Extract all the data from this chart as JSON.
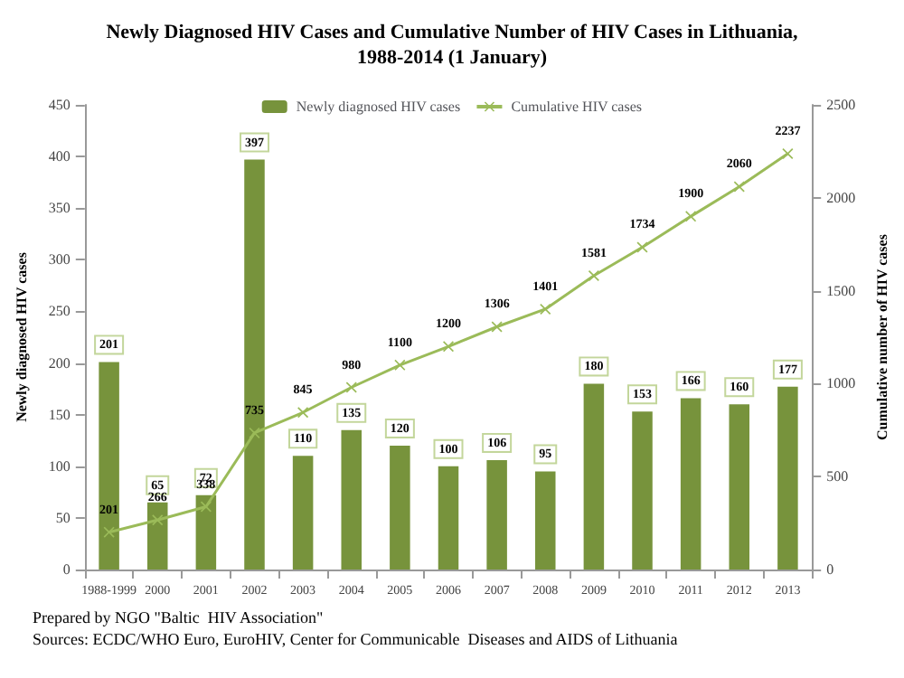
{
  "chart_data": {
    "type": "bar",
    "title": "Newly Diagnosed HIV Cases and Cumulative Number of HIV Cases in Lithuania,\n1988-2014 (1 January)",
    "ylabel": "Newly diagnosed HIV cases",
    "y2label": "Cumulative number of HIV cases",
    "categories": [
      "1988-1999",
      "2000",
      "2001",
      "2002",
      "2003",
      "2004",
      "2005",
      "2006",
      "2007",
      "2008",
      "2009",
      "2010",
      "2011",
      "2012",
      "2013"
    ],
    "series": [
      {
        "name": "Newly diagnosed HIV cases",
        "color": "#77933c",
        "values": [
          201,
          65,
          72,
          397,
          110,
          135,
          120,
          100,
          106,
          95,
          180,
          153,
          166,
          160,
          177
        ]
      },
      {
        "name": "Cumulative HIV cases",
        "type": "line",
        "axis": "y2",
        "color": "#9bbb59",
        "marker": "cross",
        "values": [
          201,
          266,
          338,
          735,
          845,
          980,
          1100,
          1200,
          1306,
          1401,
          1581,
          1734,
          1900,
          2060,
          2237
        ]
      }
    ],
    "ylim": [
      0,
      450
    ],
    "yticks": [
      0,
      50,
      100,
      150,
      200,
      250,
      300,
      350,
      400,
      450
    ],
    "y2lim": [
      0,
      2500
    ],
    "y2ticks": [
      0,
      500,
      1000,
      1500,
      2000,
      2500
    ],
    "data_labels": true,
    "grid": false,
    "legend": "top",
    "annotations": [
      "Prepared by NGO \"Baltic  HIV Association\"",
      "Sources: ECDC/WHO Euro, EuroHIV, Center for Communicable  Diseases and AIDS of Lithuania"
    ]
  }
}
